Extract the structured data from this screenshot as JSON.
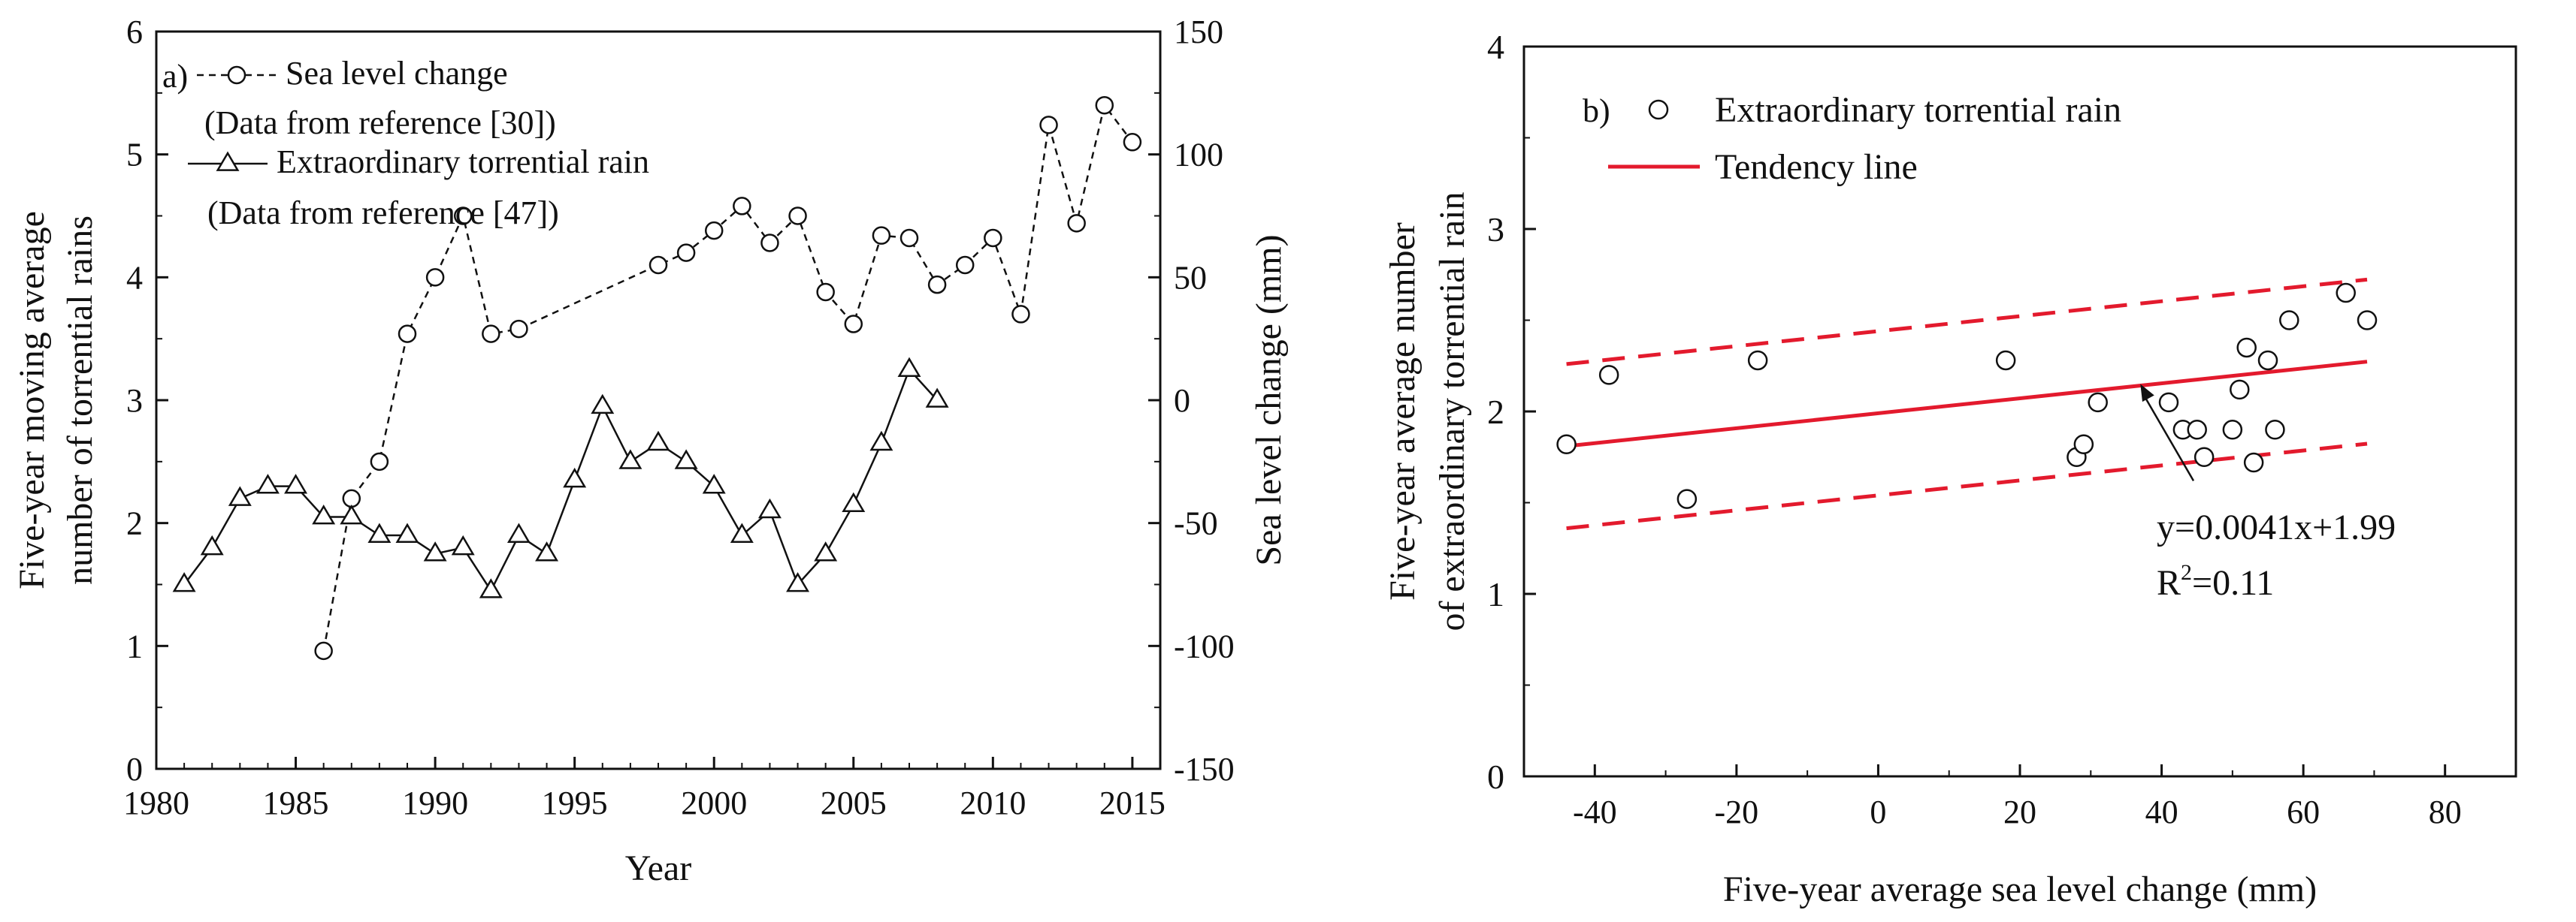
{
  "figure": {
    "colors": {
      "axis": "#111111",
      "trend": "#e31a2d",
      "markers": "#111111"
    }
  },
  "chart_data": [
    {
      "id": "panel-a",
      "type": "line",
      "panel_label": "a)",
      "xlabel": "Year",
      "ylabel_left": "Five-year moving average number of torrential rains",
      "ylabel_left_lines": [
        "Five-year moving average",
        "number of torrential rains"
      ],
      "ylabel_right": "Sea level change (mm)",
      "xlim": [
        1980,
        2016
      ],
      "ylim_left": [
        0,
        6
      ],
      "ylim_right": [
        -150,
        150
      ],
      "xticks": [
        1980,
        1985,
        1990,
        1995,
        2000,
        2005,
        2010,
        2015
      ],
      "yticks_left": [
        0,
        1,
        2,
        3,
        4,
        5,
        6
      ],
      "yticks_right": [
        -150,
        -100,
        -50,
        0,
        50,
        100,
        150
      ],
      "legend": [
        {
          "name": "Sea level change",
          "note": "(Data from reference [30])",
          "marker": "circle",
          "line": "dashed"
        },
        {
          "name": "Extraordinary torrential rain",
          "note": "(Data from reference [47])",
          "marker": "triangle",
          "line": "solid"
        }
      ],
      "series": [
        {
          "name": "Sea level change",
          "axis": "right",
          "marker": "circle",
          "line": "dashed",
          "x": [
            1986,
            1987,
            1988,
            1989,
            1990,
            1991,
            1992,
            1993,
            1998,
            1999,
            2000,
            2001,
            2002,
            2003,
            2004,
            2005,
            2006,
            2007,
            2008,
            2009,
            2010,
            2011,
            2012,
            2013,
            2014,
            2015
          ],
          "y": [
            -102,
            -40,
            -25,
            27,
            50,
            75,
            27,
            29,
            55,
            60,
            69,
            79,
            64,
            75,
            44,
            31,
            67,
            66,
            47,
            55,
            66,
            35,
            112,
            72,
            120,
            105
          ]
        },
        {
          "name": "Extraordinary torrential rain",
          "axis": "left",
          "marker": "triangle",
          "line": "solid",
          "x": [
            1981,
            1982,
            1983,
            1984,
            1985,
            1986,
            1987,
            1988,
            1989,
            1990,
            1991,
            1992,
            1993,
            1994,
            1995,
            1996,
            1997,
            1998,
            1999,
            2000,
            2001,
            2002,
            2003,
            2004,
            2005,
            2006,
            2007,
            2008
          ],
          "y": [
            1.5,
            1.8,
            2.2,
            2.3,
            2.3,
            2.05,
            2.05,
            1.9,
            1.9,
            1.75,
            1.8,
            1.45,
            1.9,
            1.75,
            2.35,
            2.95,
            2.5,
            2.65,
            2.5,
            2.3,
            1.9,
            2.1,
            1.5,
            1.75,
            2.15,
            2.65,
            3.25,
            3.0
          ]
        }
      ]
    },
    {
      "id": "panel-b",
      "type": "scatter",
      "panel_label": "b)",
      "xlabel": "Five-year average sea level change (mm)",
      "ylabel": "Five-year average number of extraordinary torrential rain",
      "ylabel_lines": [
        "Five-year average number",
        "of extraordinary torrential rain"
      ],
      "xlim": [
        -50,
        90
      ],
      "ylim": [
        0,
        4
      ],
      "xticks": [
        -40,
        -20,
        0,
        20,
        40,
        60,
        80
      ],
      "yticks": [
        0,
        1,
        2,
        3,
        4
      ],
      "legend": [
        {
          "name": "Extraordinary torrential rain",
          "marker": "circle"
        },
        {
          "name": "Tendency line",
          "marker": "line"
        }
      ],
      "series": [
        {
          "name": "Extraordinary torrential rain",
          "marker": "circle",
          "x": [
            -44,
            -38,
            -27,
            -17,
            18,
            28,
            29,
            31,
            41,
            43,
            45,
            46,
            50,
            51,
            52,
            53,
            55,
            56,
            58,
            66,
            69
          ],
          "y": [
            1.82,
            2.2,
            1.52,
            2.28,
            2.28,
            1.75,
            1.82,
            2.05,
            2.05,
            1.9,
            1.9,
            1.75,
            1.9,
            2.12,
            2.35,
            1.72,
            2.28,
            1.9,
            2.5,
            2.65,
            2.5
          ]
        }
      ],
      "trend": {
        "name": "Tendency line",
        "slope": 0.0041,
        "intercept": 1.99,
        "x_range": [
          -44,
          69
        ],
        "band_offset": 0.45,
        "equation": "y=0.0041x+1.99",
        "r2_prefix": "R",
        "r2_sup": "2",
        "r2_value": "=0.11",
        "arrow_target": [
          37,
          2.15
        ]
      }
    }
  ]
}
